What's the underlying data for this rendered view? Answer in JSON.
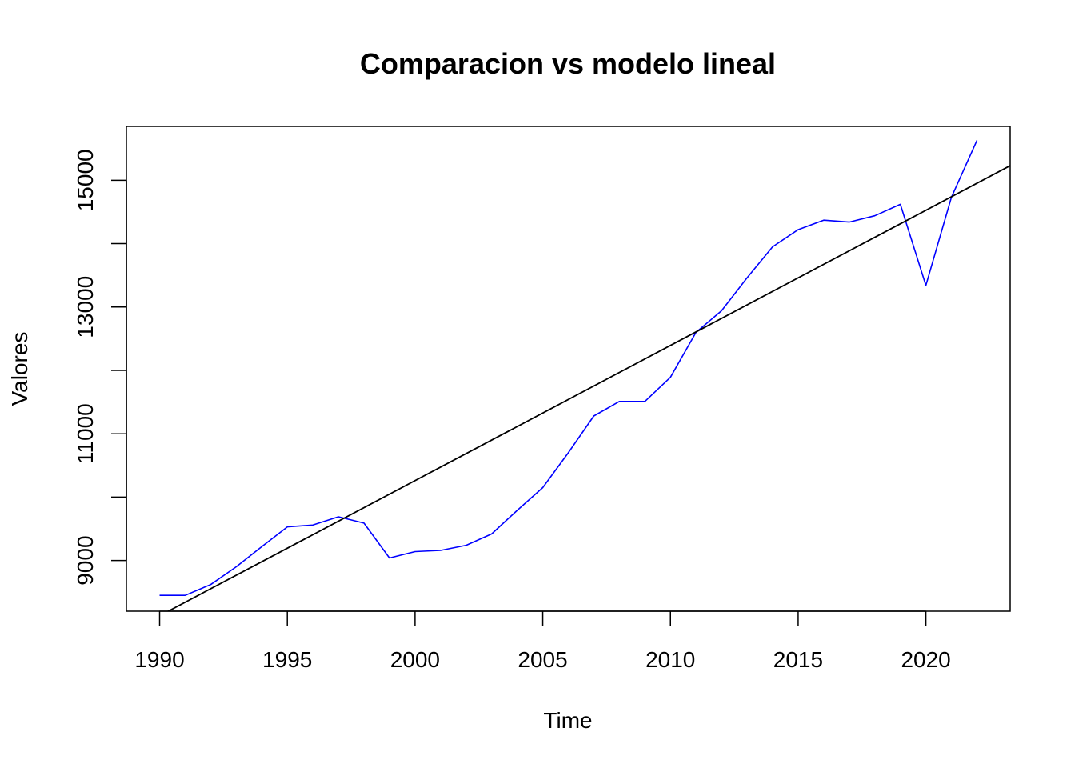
{
  "chart_data": {
    "type": "line",
    "title": "Comparacion vs modelo lineal",
    "xlabel": "Time",
    "ylabel": "Valores",
    "xlim": [
      1988.7,
      2023.3
    ],
    "ylim": [
      8200,
      15850
    ],
    "x_ticks": [
      1990,
      1995,
      2000,
      2005,
      2010,
      2015,
      2020
    ],
    "y_ticks": [
      9000,
      11000,
      13000,
      15000
    ],
    "grid": false,
    "series": [
      {
        "color": "#0000ff",
        "x": [
          1990,
          1991,
          1992,
          1993,
          1994,
          1995,
          1996,
          1997,
          1998,
          1999,
          2000,
          2001,
          2002,
          2003,
          2004,
          2005,
          2006,
          2007,
          2008,
          2009,
          2010,
          2011,
          2012,
          2013,
          2014,
          2015,
          2016,
          2017,
          2018,
          2019,
          2020,
          2021,
          2022
        ],
        "values": [
          8450,
          8450,
          8620,
          8900,
          9220,
          9530,
          9560,
          9690,
          9590,
          9040,
          9140,
          9160,
          9240,
          9420,
          9790,
          10150,
          10700,
          11280,
          11510,
          11510,
          11890,
          12600,
          12940,
          13460,
          13950,
          14220,
          14370,
          14340,
          14440,
          14620,
          13340,
          14730,
          15630
        ]
      },
      {
        "color": "#000000",
        "x": [
          1988.7,
          2023.3
        ],
        "values": [
          7850,
          15230
        ]
      }
    ]
  }
}
